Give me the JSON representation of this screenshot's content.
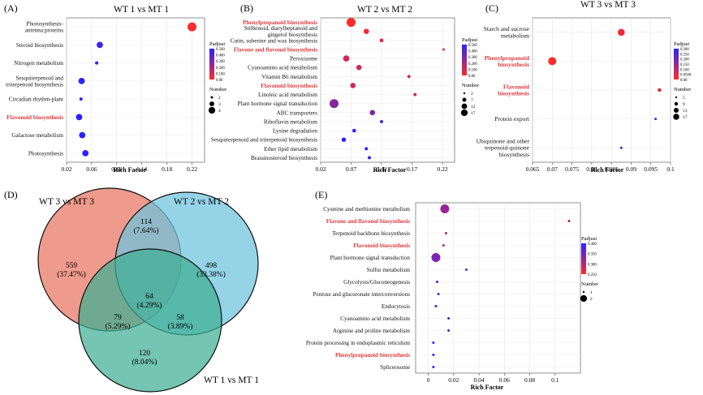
{
  "colors": {
    "high": "#ff2a2a",
    "low": "#2a22ff",
    "highlight": "#e0383c",
    "venn_a": "#e8735f",
    "venn_b": "#6cc4de",
    "venn_c": "#3fae93"
  },
  "chart_data": [
    {
      "panel": "(A)",
      "type": "scatter",
      "title": "WT 1 vs MT 1",
      "xlabel": "Rich Factor",
      "xlim": [
        0.02,
        0.24
      ],
      "xticks": [
        "0.02",
        "0.06",
        "0.10",
        "0.14",
        "0.18",
        "0.22"
      ],
      "categories": [
        {
          "label": "Photosynthesis-\nantenna proteins",
          "x": 0.22,
          "padj": 0.0,
          "n": 4,
          "hl": false
        },
        {
          "label": "Steroid biosynthesis",
          "x": 0.073,
          "padj": 0.45,
          "n": 3,
          "hl": false
        },
        {
          "label": "Nitrogen metabolism",
          "x": 0.068,
          "padj": 0.5,
          "n": 2,
          "hl": false
        },
        {
          "label": "Sesquiterpenoid and\ntriterpenoid biosynthesis",
          "x": 0.044,
          "padj": 0.6,
          "n": 3,
          "hl": false
        },
        {
          "label": "Circadian rhythm-plant",
          "x": 0.043,
          "padj": 0.7,
          "n": 2,
          "hl": false
        },
        {
          "label": "Flavonoid biosynthesis",
          "x": 0.04,
          "padj": 0.65,
          "n": 3,
          "hl": true
        },
        {
          "label": "Galactose metabolism",
          "x": 0.045,
          "padj": 0.7,
          "n": 3,
          "hl": false
        },
        {
          "label": "Photosynthesis",
          "x": 0.05,
          "padj": 0.7,
          "n": 3,
          "hl": false
        }
      ],
      "legend": {
        "padj_title": "Padjust",
        "padj_ticks": [
          "0.500",
          "0.400",
          "0.300",
          "0.200",
          "0.100",
          "0.00"
        ],
        "num_title": "Number",
        "num_values": [
          "2",
          "3",
          "4"
        ]
      }
    },
    {
      "panel": "(B)",
      "type": "scatter",
      "title": "WT 2 vs MT 2",
      "xlabel": "Rich Factor",
      "xlim": [
        0.02,
        0.24
      ],
      "xticks": [
        "0.02",
        "0.07",
        "0.12",
        "0.17",
        "0.22"
      ],
      "categories": [
        {
          "label": "Phenylpropanoid biosynthesis",
          "x": 0.07,
          "padj": 0.0,
          "n": 17,
          "hl": true
        },
        {
          "label": "Stilbenoid, diarylheptanoid and\ngingerol biosynthesis",
          "x": 0.095,
          "padj": 0.02,
          "n": 7,
          "hl": false
        },
        {
          "label": "Cutin, suberine and wax biosynthesis",
          "x": 0.12,
          "padj": 0.05,
          "n": 4,
          "hl": false
        },
        {
          "label": "Flavone and flavonol biosynthesis",
          "x": 0.222,
          "padj": 0.05,
          "n": 2,
          "hl": true
        },
        {
          "label": "Peroxisome",
          "x": 0.062,
          "padj": 0.1,
          "n": 9,
          "hl": false
        },
        {
          "label": "Cyanoamino acid metabolism",
          "x": 0.083,
          "padj": 0.1,
          "n": 7,
          "hl": false
        },
        {
          "label": "Vitamin B6 metabolism",
          "x": 0.165,
          "padj": 0.1,
          "n": 3,
          "hl": false
        },
        {
          "label": "Flavonoid biosynthesis",
          "x": 0.073,
          "padj": 0.1,
          "n": 7,
          "hl": true
        },
        {
          "label": "Linoleic acid metabolism",
          "x": 0.175,
          "padj": 0.1,
          "n": 3,
          "hl": false
        },
        {
          "label": "Plant hormone signal transduction",
          "x": 0.042,
          "padj": 0.28,
          "n": 17,
          "hl": false
        },
        {
          "label": "ABC transporters",
          "x": 0.105,
          "padj": 0.3,
          "n": 7,
          "hl": false
        },
        {
          "label": "Riboflavin metabolism",
          "x": 0.12,
          "padj": 0.45,
          "n": 3,
          "hl": false
        },
        {
          "label": "Lysine degradation",
          "x": 0.075,
          "padj": 0.45,
          "n": 4,
          "hl": false
        },
        {
          "label": "Sesquiterpenoid and triterpenoid biosynthesis",
          "x": 0.058,
          "padj": 0.5,
          "n": 5,
          "hl": false
        },
        {
          "label": "Ether lipid metabolism",
          "x": 0.095,
          "padj": 0.5,
          "n": 3,
          "hl": false
        },
        {
          "label": "Brassinosteroid biosynthesis",
          "x": 0.1,
          "padj": 0.5,
          "n": 3,
          "hl": false
        }
      ],
      "legend": {
        "padj_title": "Padjust",
        "padj_ticks": [
          "0.500",
          "0.400",
          "0.300",
          "0.200",
          "0.100",
          "0.00"
        ],
        "num_title": "Number",
        "num_values": [
          "2",
          "7",
          "12",
          "17"
        ]
      }
    },
    {
      "panel": "(C)",
      "type": "scatter",
      "title": "WT 3 vs MT 3",
      "xlabel": "Rich Factor",
      "xlim": [
        0.065,
        0.1
      ],
      "xticks": [
        "0.065",
        "0.07",
        "0.075",
        "0.08",
        "0.085",
        "0.09",
        "0.095",
        "0.1"
      ],
      "categories": [
        {
          "label": "Starch and sucrose\nmetabolism",
          "x": 0.0875,
          "padj": 0.02,
          "n": 14,
          "hl": false
        },
        {
          "label": "Phenylpropanoid\nbiosynthesis",
          "x": 0.07,
          "padj": 0.0,
          "n": 17,
          "hl": true
        },
        {
          "label": "Flavonoid\nbiosynthesis",
          "x": 0.0972,
          "padj": 0.03,
          "n": 7,
          "hl": true
        },
        {
          "label": "Protein export",
          "x": 0.0962,
          "padj": 0.25,
          "n": 5,
          "hl": false
        },
        {
          "label": "Ubiquinone and other\nterpenoid-quinone\nbiosynthesis",
          "x": 0.0875,
          "padj": 0.27,
          "n": 5,
          "hl": false
        }
      ],
      "legend": {
        "padj_title": "Padjust",
        "padj_ticks": [
          "0.300",
          "0.250",
          "0.200",
          "0.150",
          "0.100",
          "0.0500",
          "0.00"
        ],
        "num_title": "Number",
        "num_values": [
          "5",
          "9",
          "13",
          "17"
        ]
      }
    },
    {
      "panel": "(D)",
      "type": "venn",
      "sets": [
        "WT 3 vs MT 3",
        "WT 2 vs MT 2",
        "WT 1 vs MT 1"
      ],
      "regions": [
        {
          "id": "a_only",
          "count": "559",
          "pct": "(37.47%)"
        },
        {
          "id": "ab",
          "count": "114",
          "pct": "(7.64%)"
        },
        {
          "id": "b_only",
          "count": "498",
          "pct": "(33.38%)"
        },
        {
          "id": "abc",
          "count": "64",
          "pct": "(4.29%)"
        },
        {
          "id": "ac",
          "count": "79",
          "pct": "(5.29%)"
        },
        {
          "id": "bc",
          "count": "58",
          "pct": "(3.89%)"
        },
        {
          "id": "c_only",
          "count": "120",
          "pct": "(8.04%)"
        }
      ]
    },
    {
      "panel": "(E)",
      "type": "scatter",
      "title": "",
      "xlabel": "Rich Factor",
      "xlim": [
        -0.01,
        0.12
      ],
      "xticks": [
        "0",
        "0.02",
        "0.04",
        "0.06",
        "0.08",
        "0.1"
      ],
      "categories": [
        {
          "label": "Cysteine and methionine metabolism",
          "x": 0.013,
          "padj": 0.2,
          "n": 2,
          "hl": false
        },
        {
          "label": "Flavone and flavonol biosynthesis",
          "x": 0.111,
          "padj": 0.2,
          "n": 1,
          "hl": true
        },
        {
          "label": "Terpenoid backbone biosynthesis",
          "x": 0.014,
          "padj": 0.2,
          "n": 1,
          "hl": false
        },
        {
          "label": "Flavonoid biosynthesis",
          "x": 0.012,
          "padj": 0.2,
          "n": 1,
          "hl": true
        },
        {
          "label": "Plant hormone signal transduction",
          "x": 0.006,
          "padj": 0.25,
          "n": 2,
          "hl": false
        },
        {
          "label": "Sulfur metabolism",
          "x": 0.03,
          "padj": 0.27,
          "n": 1,
          "hl": false
        },
        {
          "label": "Glycolysis/Gluconeogenesis",
          "x": 0.007,
          "padj": 0.33,
          "n": 1,
          "hl": false
        },
        {
          "label": "Pentose and glucuronate interconversions",
          "x": 0.008,
          "padj": 0.35,
          "n": 1,
          "hl": false
        },
        {
          "label": "Endocytosis",
          "x": 0.006,
          "padj": 0.37,
          "n": 1,
          "hl": false
        },
        {
          "label": "Cyanoamino acid metabolism",
          "x": 0.016,
          "padj": 0.42,
          "n": 1,
          "hl": false
        },
        {
          "label": "Arginine and proline metabolism",
          "x": 0.016,
          "padj": 0.42,
          "n": 1,
          "hl": false
        },
        {
          "label": "Protein processing in endoplasmic reticulum",
          "x": 0.004,
          "padj": 0.45,
          "n": 1,
          "hl": false
        },
        {
          "label": "Phenylpropanoid biosynthesis",
          "x": 0.004,
          "padj": 0.45,
          "n": 1,
          "hl": true
        },
        {
          "label": "Spliceosome",
          "x": 0.004,
          "padj": 0.45,
          "n": 1,
          "hl": false
        }
      ],
      "legend": {
        "padj_title": "Padjust",
        "padj_ticks": [
          "0.400",
          "0.350",
          "0.300",
          "0.250"
        ],
        "num_title": "Number",
        "num_values": [
          "1",
          "2"
        ]
      }
    }
  ]
}
